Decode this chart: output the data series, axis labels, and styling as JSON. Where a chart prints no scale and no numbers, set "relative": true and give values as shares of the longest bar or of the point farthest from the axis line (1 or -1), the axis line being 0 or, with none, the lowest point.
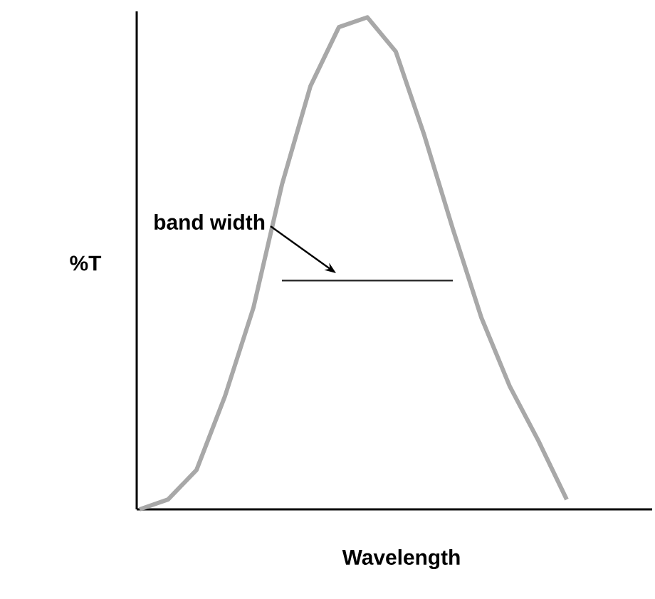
{
  "chart_data": {
    "type": "line",
    "relative": true,
    "xlabel": "Wavelength",
    "ylabel": "%T",
    "categories": [
      null,
      null,
      null,
      null,
      null,
      null,
      null,
      null,
      null,
      null,
      null,
      null,
      null,
      null,
      null,
      null,
      null,
      null,
      null
    ],
    "series": [
      {
        "color": "#a8a8a8",
        "values": [
          0,
          0.02,
          0.08,
          0.23,
          0.41,
          0.66,
          0.86,
          0.98,
          1.0,
          0.93,
          0.76,
          0.57,
          0.39,
          0.25,
          0.14,
          0.02,
          null,
          null,
          null
        ]
      },
      {
        "color": "#222222",
        "values": [
          null,
          null,
          null,
          null,
          null,
          0.465,
          0.465,
          0.465,
          0.465,
          0.465,
          0.465,
          0.465,
          null,
          null,
          null,
          null,
          null,
          null,
          null
        ]
      }
    ],
    "annotations": [
      "band width"
    ]
  }
}
